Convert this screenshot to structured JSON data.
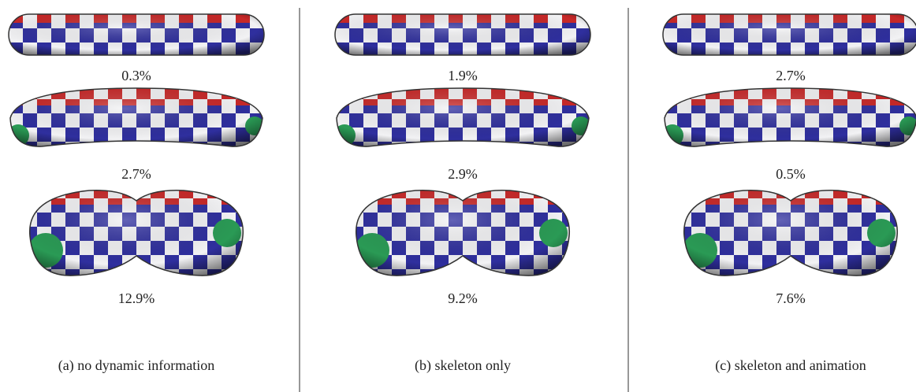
{
  "columns": [
    {
      "labels": [
        "0.3%",
        "2.7%",
        "12.9%"
      ],
      "caption": "(a) no dynamic information"
    },
    {
      "labels": [
        "1.9%",
        "2.9%",
        "9.2%"
      ],
      "caption": "(b) skeleton only"
    },
    {
      "labels": [
        "2.7%",
        "0.5%",
        "7.6%"
      ],
      "caption": "(c) skeleton and animation"
    }
  ]
}
